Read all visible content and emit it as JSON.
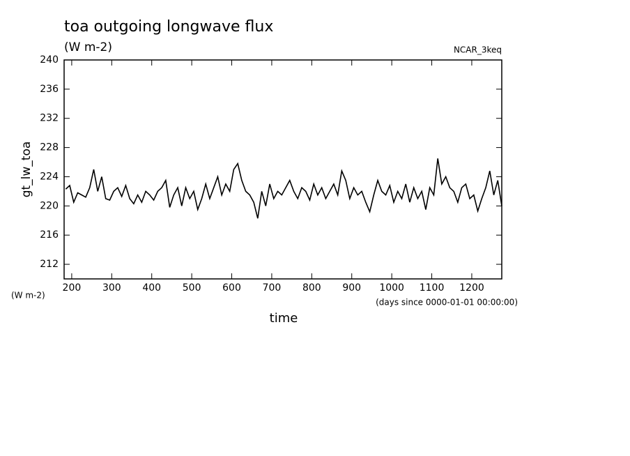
{
  "chart_data": {
    "type": "line",
    "title": "toa outgoing longwave flux",
    "subtitle": "(W m-2)",
    "annotation": "NCAR_3keq",
    "y_label": "gt_lw_toa",
    "y_unit": "(W m-2)",
    "x_unit": "(days since 0000-01-01 00:00:00)",
    "x_label": "time",
    "xlim": [
      181,
      1275
    ],
    "ylim": [
      210,
      240
    ],
    "xticks": [
      200,
      300,
      400,
      500,
      600,
      700,
      800,
      900,
      1000,
      1100,
      1200
    ],
    "yticks": [
      212,
      216,
      220,
      224,
      228,
      232,
      236,
      240
    ],
    "x": [
      185,
      195,
      205,
      215,
      225,
      235,
      245,
      255,
      265,
      275,
      285,
      295,
      305,
      315,
      325,
      335,
      345,
      355,
      365,
      375,
      385,
      395,
      405,
      415,
      425,
      435,
      445,
      455,
      465,
      475,
      485,
      495,
      505,
      515,
      525,
      535,
      545,
      555,
      565,
      575,
      585,
      595,
      605,
      615,
      625,
      635,
      645,
      655,
      665,
      675,
      685,
      695,
      705,
      715,
      725,
      735,
      745,
      755,
      765,
      775,
      785,
      795,
      805,
      815,
      825,
      835,
      845,
      855,
      865,
      875,
      885,
      895,
      905,
      915,
      925,
      935,
      945,
      955,
      965,
      975,
      985,
      995,
      1005,
      1015,
      1025,
      1035,
      1045,
      1055,
      1065,
      1075,
      1085,
      1095,
      1105,
      1115,
      1125,
      1135,
      1145,
      1155,
      1165,
      1175,
      1185,
      1195,
      1205,
      1215,
      1225,
      1235,
      1245,
      1255,
      1265,
      1275
    ],
    "series": [
      {
        "color": "#000000",
        "values": [
          222.3,
          222.8,
          220.5,
          221.8,
          221.5,
          221.2,
          222.5,
          225.0,
          222.0,
          224.0,
          221.0,
          220.8,
          222.0,
          222.5,
          221.3,
          222.8,
          221.0,
          220.3,
          221.5,
          220.5,
          222.0,
          221.5,
          220.8,
          222.0,
          222.5,
          223.5,
          219.8,
          221.5,
          222.5,
          220.0,
          222.5,
          221.0,
          222.0,
          219.5,
          221.0,
          223.0,
          221.0,
          222.5,
          224.0,
          221.5,
          223.0,
          222.0,
          225.0,
          225.8,
          223.5,
          222.0,
          221.5,
          220.5,
          218.3,
          222.0,
          220.0,
          223.0,
          221.0,
          222.0,
          221.5,
          222.5,
          223.5,
          222.0,
          221.0,
          222.5,
          222.0,
          220.8,
          223.0,
          221.5,
          222.5,
          221.0,
          222.0,
          223.0,
          221.5,
          224.8,
          223.5,
          221.0,
          222.5,
          221.5,
          222.0,
          220.5,
          219.2,
          221.5,
          223.5,
          222.0,
          221.5,
          222.8,
          220.5,
          222.0,
          221.0,
          223.0,
          220.5,
          222.5,
          221.0,
          222.0,
          219.5,
          222.5,
          221.5,
          226.5,
          223.0,
          224.0,
          222.5,
          222.0,
          220.5,
          222.5,
          223.0,
          221.0,
          221.5,
          219.3,
          221.0,
          222.5,
          224.8,
          221.5,
          223.5,
          220.0
        ]
      }
    ]
  }
}
